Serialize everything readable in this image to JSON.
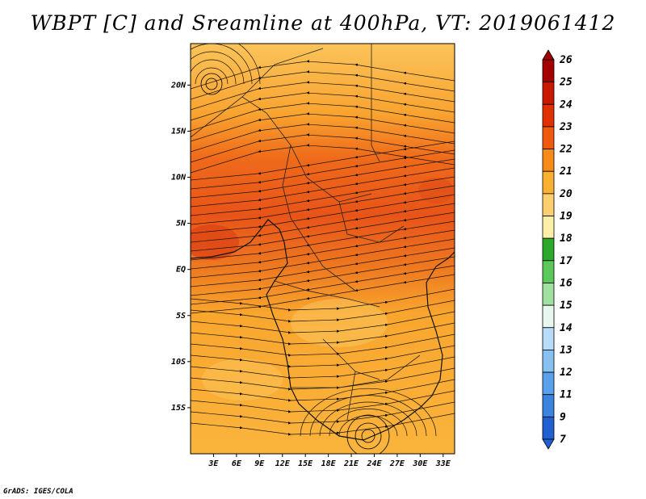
{
  "title": "WBPT [C] and Sreamline at 400hPa, VT: 2019061412",
  "footer": "GrADS: IGES/COLA",
  "map": {
    "lon_range": [
      0,
      34.5
    ],
    "lat_range": [
      -20,
      24.5
    ],
    "lat_ticks": [
      {
        "value": 20,
        "label": "20N"
      },
      {
        "value": 15,
        "label": "15N"
      },
      {
        "value": 10,
        "label": "10N"
      },
      {
        "value": 5,
        "label": "5N"
      },
      {
        "value": 0,
        "label": "EQ"
      },
      {
        "value": -5,
        "label": "5S"
      },
      {
        "value": -10,
        "label": "10S"
      },
      {
        "value": -15,
        "label": "15S"
      }
    ],
    "lon_ticks": [
      {
        "value": 3,
        "label": "3E"
      },
      {
        "value": 6,
        "label": "6E"
      },
      {
        "value": 9,
        "label": "9E"
      },
      {
        "value": 12,
        "label": "12E"
      },
      {
        "value": 15,
        "label": "15E"
      },
      {
        "value": 18,
        "label": "18E"
      },
      {
        "value": 21,
        "label": "21E"
      },
      {
        "value": 24,
        "label": "24E"
      },
      {
        "value": 27,
        "label": "27E"
      },
      {
        "value": 30,
        "label": "30E"
      },
      {
        "value": 33,
        "label": "33E"
      }
    ]
  },
  "colorbar": {
    "labels": [
      "26",
      "25",
      "24",
      "23",
      "22",
      "21",
      "20",
      "19",
      "18",
      "17",
      "16",
      "15",
      "14",
      "13",
      "12",
      "11",
      "9",
      "7"
    ],
    "colors": [
      "#a40000",
      "#c81800",
      "#e03000",
      "#f05a10",
      "#f88a1a",
      "#fab030",
      "#fcd070",
      "#fcf0a8",
      "#2ca82c",
      "#5cc85c",
      "#a0e0a0",
      "#e8f8f0",
      "#b8dcf8",
      "#88c0f0",
      "#5aa0ea",
      "#3a84e0",
      "#2060d0"
    ]
  }
}
